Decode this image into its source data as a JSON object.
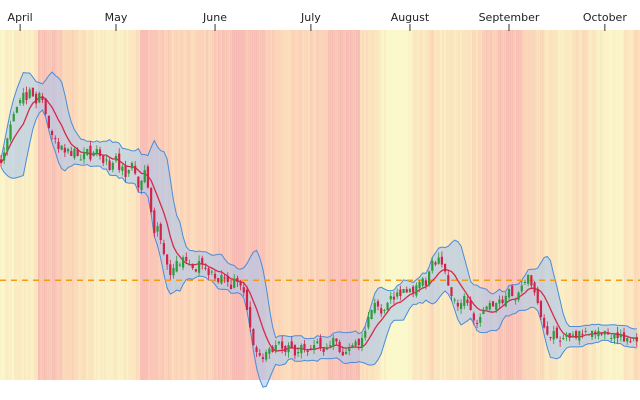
{
  "chart_data": {
    "type": "candlestick",
    "title": "",
    "xlabel": "",
    "ylabel": "",
    "ylim": [
      0,
      100
    ],
    "grid": false,
    "legend": "none",
    "y_axis_labels_visible": false,
    "months": [
      {
        "label": "April",
        "day": 0
      },
      {
        "label": "May",
        "day": 30
      },
      {
        "label": "June",
        "day": 61
      },
      {
        "label": "July",
        "day": 91
      },
      {
        "label": "August",
        "day": 122
      },
      {
        "label": "September",
        "day": 153
      },
      {
        "label": "October",
        "day": 183
      }
    ],
    "x_range_days": [
      -6.3,
      194
    ],
    "reference_line": {
      "value": 28.5,
      "color": "#f39c12",
      "style": "dashed"
    },
    "closes": [
      [
        -6,
        62
      ],
      [
        -5,
        65
      ],
      [
        -4,
        69
      ],
      [
        -3,
        73
      ],
      [
        -2,
        76
      ],
      [
        -1,
        78
      ],
      [
        0,
        80
      ],
      [
        1,
        82
      ],
      [
        2,
        80
      ],
      [
        3,
        83
      ],
      [
        4,
        81
      ],
      [
        5,
        79
      ],
      [
        6,
        82
      ],
      [
        7,
        80
      ],
      [
        8,
        76
      ],
      [
        9,
        72
      ],
      [
        10,
        70
      ],
      [
        11,
        69
      ],
      [
        12,
        66
      ],
      [
        13,
        67
      ],
      [
        14,
        65
      ],
      [
        15,
        66
      ],
      [
        16,
        64
      ],
      [
        17,
        66
      ],
      [
        18,
        64
      ],
      [
        19,
        63
      ],
      [
        20,
        65
      ],
      [
        21,
        66
      ],
      [
        22,
        63
      ],
      [
        23,
        65
      ],
      [
        24,
        66
      ],
      [
        25,
        64
      ],
      [
        26,
        62
      ],
      [
        27,
        63
      ],
      [
        28,
        60
      ],
      [
        29,
        62
      ],
      [
        30,
        64
      ],
      [
        31,
        60
      ],
      [
        32,
        61
      ],
      [
        33,
        58
      ],
      [
        34,
        60
      ],
      [
        35,
        62
      ],
      [
        36,
        59
      ],
      [
        37,
        55
      ],
      [
        38,
        57
      ],
      [
        39,
        60
      ],
      [
        40,
        55
      ],
      [
        41,
        48
      ],
      [
        42,
        42
      ],
      [
        43,
        44
      ],
      [
        44,
        40
      ],
      [
        45,
        36
      ],
      [
        46,
        33
      ],
      [
        47,
        30
      ],
      [
        48,
        32
      ],
      [
        49,
        34
      ],
      [
        50,
        33
      ],
      [
        51,
        35
      ],
      [
        52,
        34
      ],
      [
        53,
        33
      ],
      [
        54,
        32
      ],
      [
        55,
        31
      ],
      [
        56,
        34
      ],
      [
        57,
        33
      ],
      [
        58,
        32
      ],
      [
        59,
        30
      ],
      [
        60,
        31
      ],
      [
        61,
        29
      ],
      [
        62,
        28
      ],
      [
        63,
        30
      ],
      [
        64,
        29
      ],
      [
        65,
        28
      ],
      [
        66,
        26
      ],
      [
        67,
        29
      ],
      [
        68,
        28
      ],
      [
        69,
        27
      ],
      [
        70,
        25
      ],
      [
        71,
        20
      ],
      [
        72,
        15
      ],
      [
        73,
        10
      ],
      [
        74,
        8
      ],
      [
        75,
        7
      ],
      [
        76,
        6
      ],
      [
        77,
        8
      ],
      [
        78,
        9
      ],
      [
        79,
        8
      ],
      [
        80,
        10
      ],
      [
        81,
        11
      ],
      [
        82,
        9
      ],
      [
        83,
        8
      ],
      [
        84,
        10
      ],
      [
        85,
        9
      ],
      [
        86,
        7
      ],
      [
        87,
        8
      ],
      [
        88,
        10
      ],
      [
        89,
        9
      ],
      [
        90,
        8
      ],
      [
        91,
        9
      ],
      [
        92,
        10
      ],
      [
        93,
        11
      ],
      [
        94,
        9
      ],
      [
        95,
        8
      ],
      [
        96,
        9
      ],
      [
        97,
        10
      ],
      [
        98,
        12
      ],
      [
        99,
        11
      ],
      [
        100,
        8
      ],
      [
        101,
        7
      ],
      [
        102,
        8
      ],
      [
        103,
        9
      ],
      [
        104,
        10
      ],
      [
        105,
        11
      ],
      [
        106,
        10
      ],
      [
        107,
        12
      ],
      [
        108,
        14
      ],
      [
        109,
        18
      ],
      [
        110,
        20
      ],
      [
        111,
        22
      ],
      [
        112,
        21
      ],
      [
        113,
        19
      ],
      [
        114,
        20
      ],
      [
        115,
        22
      ],
      [
        116,
        24
      ],
      [
        117,
        23
      ],
      [
        118,
        25
      ],
      [
        119,
        24
      ],
      [
        120,
        26
      ],
      [
        121,
        25
      ],
      [
        122,
        26
      ],
      [
        123,
        25
      ],
      [
        124,
        27
      ],
      [
        125,
        28
      ],
      [
        126,
        29
      ],
      [
        127,
        27
      ],
      [
        128,
        31
      ],
      [
        129,
        34
      ],
      [
        130,
        33
      ],
      [
        131,
        35
      ],
      [
        132,
        33
      ],
      [
        133,
        31
      ],
      [
        134,
        27
      ],
      [
        135,
        24
      ],
      [
        136,
        23
      ],
      [
        137,
        21
      ],
      [
        138,
        22
      ],
      [
        139,
        24
      ],
      [
        140,
        22
      ],
      [
        141,
        20
      ],
      [
        142,
        17
      ],
      [
        143,
        16
      ],
      [
        144,
        18
      ],
      [
        145,
        20
      ],
      [
        146,
        21
      ],
      [
        147,
        22
      ],
      [
        148,
        21
      ],
      [
        149,
        22
      ],
      [
        150,
        23
      ],
      [
        151,
        22
      ],
      [
        152,
        24
      ],
      [
        153,
        26
      ],
      [
        154,
        24
      ],
      [
        155,
        23
      ],
      [
        156,
        25
      ],
      [
        157,
        27
      ],
      [
        158,
        28
      ],
      [
        159,
        30
      ],
      [
        160,
        27
      ],
      [
        161,
        25
      ],
      [
        162,
        22
      ],
      [
        163,
        18
      ],
      [
        164,
        15
      ],
      [
        165,
        13
      ],
      [
        166,
        12
      ],
      [
        167,
        14
      ],
      [
        168,
        12
      ],
      [
        169,
        11
      ],
      [
        170,
        12
      ],
      [
        171,
        13
      ],
      [
        172,
        12
      ],
      [
        173,
        13
      ],
      [
        174,
        12
      ],
      [
        175,
        14
      ],
      [
        176,
        13
      ],
      [
        177,
        14
      ],
      [
        178,
        13
      ],
      [
        179,
        14
      ],
      [
        180,
        13
      ],
      [
        181,
        14
      ],
      [
        182,
        13
      ],
      [
        183,
        14
      ],
      [
        184,
        13
      ],
      [
        185,
        12
      ],
      [
        186,
        13
      ],
      [
        187,
        12
      ],
      [
        188,
        13
      ],
      [
        189,
        11
      ],
      [
        190,
        12
      ],
      [
        191,
        11
      ],
      [
        192,
        12
      ],
      [
        193,
        11
      ]
    ]
  },
  "colors": {
    "up_candle": "#2e9a3c",
    "down_candle": "#d0234a",
    "band_fill": "#aac8ee",
    "band_edge": "#4a8cd9",
    "moving_average": "#d42a4a",
    "reference_line": "#f39c12",
    "heat_red": "#f28b82",
    "heat_orange": "#f7c58a",
    "heat_yellow": "#f5f3a8"
  }
}
